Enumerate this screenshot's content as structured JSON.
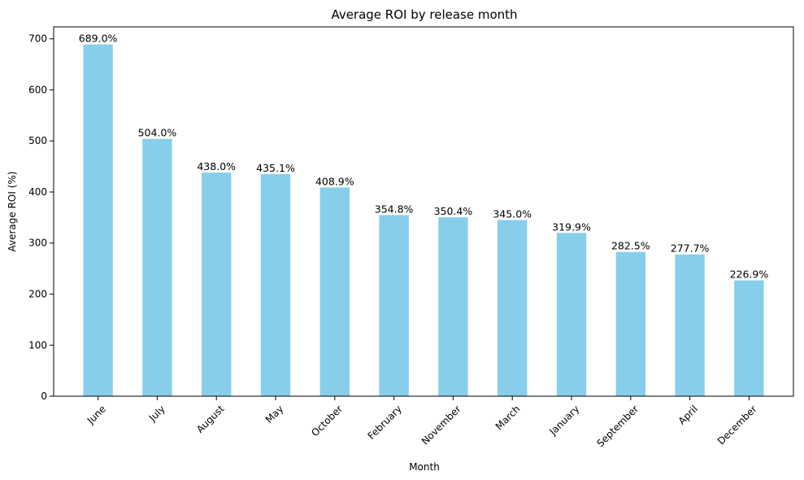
{
  "chart_data": {
    "type": "bar",
    "title": "Average ROI by release month",
    "xlabel": "Month",
    "ylabel": "Average ROI (%)",
    "categories": [
      "June",
      "July",
      "August",
      "May",
      "October",
      "February",
      "November",
      "March",
      "January",
      "September",
      "April",
      "December"
    ],
    "values": [
      689.0,
      504.0,
      438.0,
      435.1,
      408.9,
      354.8,
      350.4,
      345.0,
      319.9,
      282.5,
      277.7,
      226.9
    ],
    "value_labels": [
      "689.0%",
      "504.0%",
      "438.0%",
      "435.1%",
      "408.9%",
      "354.8%",
      "350.4%",
      "345.0%",
      "319.9%",
      "282.5%",
      "277.7%",
      "226.9%"
    ],
    "ylim": [
      0,
      723.45
    ],
    "yticks": [
      0,
      100,
      200,
      300,
      400,
      500,
      600,
      700
    ],
    "ytick_labels": [
      "0",
      "100",
      "200",
      "300",
      "400",
      "500",
      "600",
      "700"
    ],
    "grid": false,
    "bar_color": "#87ceeb"
  }
}
